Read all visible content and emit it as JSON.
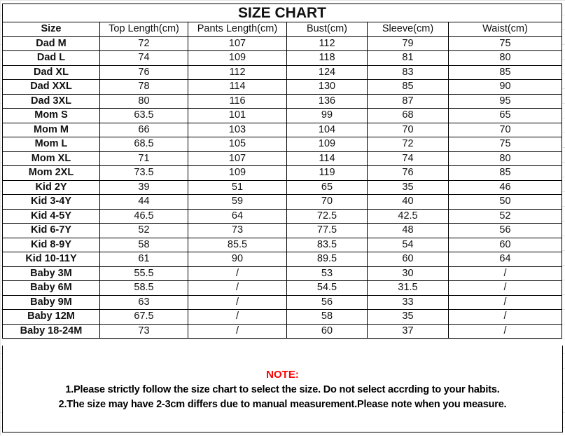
{
  "title": "SIZE CHART",
  "headers": [
    "Size",
    "Top Length(cm)",
    "Pants Length(cm)",
    "Bust(cm)",
    "Sleeve(cm)",
    "Waist(cm)"
  ],
  "rows": [
    [
      "Dad M",
      "72",
      "107",
      "112",
      "79",
      "75"
    ],
    [
      "Dad L",
      "74",
      "109",
      "118",
      "81",
      "80"
    ],
    [
      "Dad XL",
      "76",
      "112",
      "124",
      "83",
      "85"
    ],
    [
      "Dad XXL",
      "78",
      "114",
      "130",
      "85",
      "90"
    ],
    [
      "Dad 3XL",
      "80",
      "116",
      "136",
      "87",
      "95"
    ],
    [
      "Mom S",
      "63.5",
      "101",
      "99",
      "68",
      "65"
    ],
    [
      "Mom M",
      "66",
      "103",
      "104",
      "70",
      "70"
    ],
    [
      "Mom L",
      "68.5",
      "105",
      "109",
      "72",
      "75"
    ],
    [
      "Mom XL",
      "71",
      "107",
      "114",
      "74",
      "80"
    ],
    [
      "Mom 2XL",
      "73.5",
      "109",
      "119",
      "76",
      "85"
    ],
    [
      "Kid 2Y",
      "39",
      "51",
      "65",
      "35",
      "46"
    ],
    [
      "Kid 3-4Y",
      "44",
      "59",
      "70",
      "40",
      "50"
    ],
    [
      "Kid 4-5Y",
      "46.5",
      "64",
      "72.5",
      "42.5",
      "52"
    ],
    [
      "Kid 6-7Y",
      "52",
      "73",
      "77.5",
      "48",
      "56"
    ],
    [
      "Kid 8-9Y",
      "58",
      "85.5",
      "83.5",
      "54",
      "60"
    ],
    [
      "Kid 10-11Y",
      "61",
      "90",
      "89.5",
      "60",
      "64"
    ],
    [
      "Baby 3M",
      "55.5",
      "/",
      "53",
      "30",
      "/"
    ],
    [
      "Baby 6M",
      "58.5",
      "/",
      "54.5",
      "31.5",
      "/"
    ],
    [
      "Baby 9M",
      "63",
      "/",
      "56",
      "33",
      "/"
    ],
    [
      "Baby 12M",
      "67.5",
      "/",
      "58",
      "35",
      "/"
    ],
    [
      "Baby 18-24M",
      "73",
      "/",
      "60",
      "37",
      "/"
    ]
  ],
  "note": {
    "heading": "NOTE:",
    "lines": [
      "1.Please strictly follow the size chart to select the size. Do not select accrding to your habits.",
      "2.The size may have 2-3cm differs  due to manual measurement.Please note when you measure."
    ]
  },
  "colors": {
    "note_heading": "#ff0000"
  }
}
